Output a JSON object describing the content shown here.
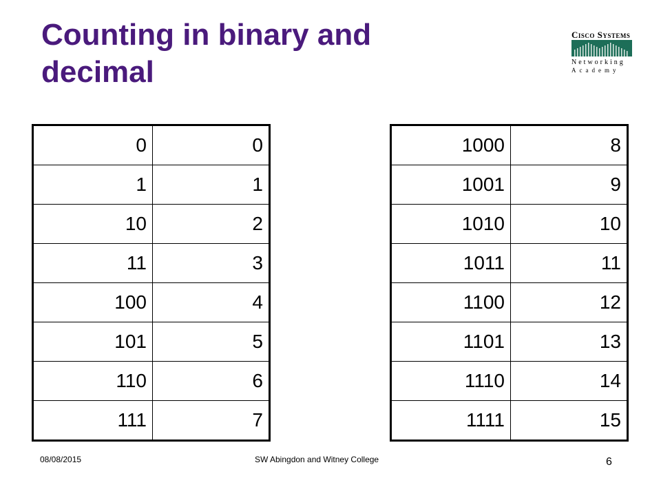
{
  "slide": {
    "title": "Counting in binary and decimal",
    "logo": {
      "brand": "Cisco Systems",
      "line1": "Networking",
      "line2": "Academy"
    },
    "left_table": [
      {
        "binary": "0",
        "decimal": "0"
      },
      {
        "binary": "1",
        "decimal": "1"
      },
      {
        "binary": "10",
        "decimal": "2"
      },
      {
        "binary": "11",
        "decimal": "3"
      },
      {
        "binary": "100",
        "decimal": "4"
      },
      {
        "binary": "101",
        "decimal": "5"
      },
      {
        "binary": "110",
        "decimal": "6"
      },
      {
        "binary": "111",
        "decimal": "7"
      }
    ],
    "right_table": [
      {
        "binary": "1000",
        "decimal": "8"
      },
      {
        "binary": "1001",
        "decimal": "9"
      },
      {
        "binary": "1010",
        "decimal": "10"
      },
      {
        "binary": "1011",
        "decimal": "11"
      },
      {
        "binary": "1100",
        "decimal": "12"
      },
      {
        "binary": "1101",
        "decimal": "13"
      },
      {
        "binary": "1110",
        "decimal": "14"
      },
      {
        "binary": "1111",
        "decimal": "15"
      }
    ],
    "footer": {
      "date": "08/08/2015",
      "center": "SW  Abingdon and Witney College",
      "page": "6"
    },
    "colors": {
      "title": "#4a1a7c",
      "logo_band": "#0f5a4a"
    }
  }
}
